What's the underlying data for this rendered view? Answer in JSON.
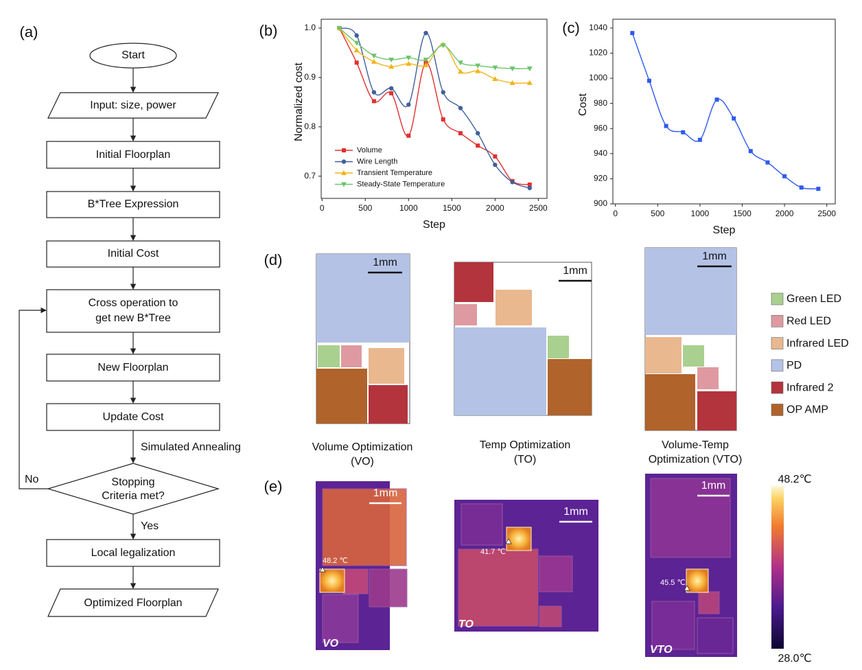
{
  "panel_labels": [
    "(a)",
    "(b)",
    "(c)",
    "(d)",
    "(e)"
  ],
  "flowchart": {
    "nodes": [
      {
        "lines": [
          "Start"
        ]
      },
      {
        "lines": [
          "Input: size, power"
        ]
      },
      {
        "lines": [
          "Initial Floorplan"
        ]
      },
      {
        "lines": [
          "B*Tree Expression"
        ]
      },
      {
        "lines": [
          "Initial Cost"
        ]
      },
      {
        "lines": [
          "Cross operation to",
          "get new B*Tree"
        ]
      },
      {
        "lines": [
          "New Floorplan"
        ]
      },
      {
        "lines": [
          "Update Cost"
        ]
      },
      {
        "lines": [
          "Stopping",
          "Criteria met?"
        ]
      },
      {
        "lines": [
          "Local legalization"
        ]
      },
      {
        "lines": [
          "Optimized Floorplan"
        ]
      }
    ],
    "edge_labels": [
      "Simulated Annealing",
      "No",
      "Yes"
    ]
  },
  "chart_data": [
    {
      "type": "line",
      "x_label": "Step",
      "y_label": "Normalized cost",
      "x": [
        200,
        400,
        600,
        800,
        1000,
        1200,
        1400,
        1600,
        1800,
        2000,
        2200,
        2400
      ],
      "series": [
        {
          "name": "Volume",
          "color": "#e03030",
          "marker": "square",
          "values": [
            1.0,
            0.93,
            0.852,
            0.868,
            0.782,
            0.93,
            0.815,
            0.787,
            0.762,
            0.74,
            0.69,
            0.683
          ]
        },
        {
          "name": "Wire Length",
          "color": "#3f5f9a",
          "marker": "circle",
          "values": [
            1.0,
            0.985,
            0.87,
            0.878,
            0.845,
            0.99,
            0.87,
            0.838,
            0.787,
            0.723,
            0.688,
            0.676
          ]
        },
        {
          "name": "Transient Temperature",
          "color": "#f0b416",
          "marker": "triangle-up",
          "values": [
            1.0,
            0.955,
            0.932,
            0.922,
            0.928,
            0.925,
            0.967,
            0.912,
            0.913,
            0.897,
            0.889,
            0.889
          ]
        },
        {
          "name": "Steady-State Temperature",
          "color": "#6cc46c",
          "marker": "triangle-down",
          "values": [
            1.0,
            0.97,
            0.944,
            0.936,
            0.94,
            0.936,
            0.965,
            0.93,
            0.924,
            0.92,
            0.918,
            0.918
          ]
        }
      ],
      "xlim": [
        -10,
        2600
      ],
      "ylim": [
        0.655,
        1.018
      ],
      "xticks": [
        0,
        500,
        1000,
        1500,
        2000,
        2500
      ],
      "yticks": [
        {
          "value": 1.0,
          "label": "1.0"
        },
        0.9,
        0.8,
        0.7
      ],
      "legend": "lower left"
    },
    {
      "type": "line",
      "x_label": "Step",
      "y_label": "Cost",
      "x": [
        200,
        400,
        600,
        800,
        1000,
        1200,
        1400,
        1600,
        1800,
        2000,
        2200,
        2400
      ],
      "values": [
        1036,
        998,
        962,
        957,
        951,
        983,
        968,
        942,
        933,
        922,
        913,
        912
      ],
      "color": "#2f5af0",
      "marker": "square",
      "xlim": [
        -30,
        2600
      ],
      "ylim": [
        900,
        1047
      ],
      "xticks": [
        0,
        500,
        1000,
        1500,
        2000,
        2500
      ],
      "yticks": [
        900,
        920,
        940,
        960,
        980,
        1000,
        1020,
        1040
      ]
    }
  ],
  "floorplans": {
    "layouts": [
      {
        "scale_bar": "1mm",
        "caption": [
          "Volume Optimization",
          "(VO)"
        ]
      },
      {
        "scale_bar": "1mm",
        "caption": [
          "Temp Optimization",
          "(TO)"
        ]
      },
      {
        "scale_bar": "1mm",
        "caption": [
          "Volume-Temp",
          "Optimization (VTO)"
        ]
      }
    ],
    "legend": [
      {
        "name": "Green LED",
        "color": "#a9d08e"
      },
      {
        "name": "Red LED",
        "color": "#de9aa0"
      },
      {
        "name": "Infrared LED",
        "color": "#e9b88f"
      },
      {
        "name": "PD",
        "color": "#b4c2e6"
      },
      {
        "name": "Infrared 2",
        "color": "#b3343c"
      },
      {
        "name": "OP AMP",
        "color": "#b0632b"
      }
    ]
  },
  "thermal": {
    "images": [
      {
        "scale_bar": "1mm",
        "hotspot": "48.2 ℃",
        "tag": "VO"
      },
      {
        "scale_bar": "1mm",
        "hotspot": "41.7 ℃",
        "tag": "TO"
      },
      {
        "scale_bar": "1mm",
        "hotspot": "45.5 ℃",
        "tag": "VTO"
      }
    ],
    "colorbar": {
      "max": "48.2℃",
      "min": "28.0℃"
    }
  }
}
